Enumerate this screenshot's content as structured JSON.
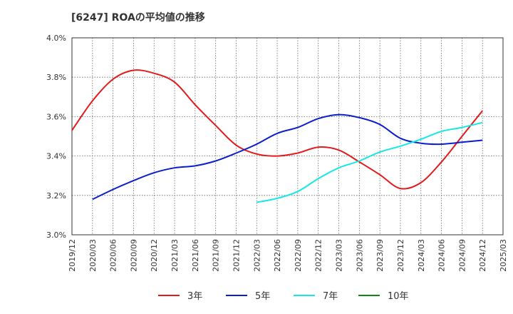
{
  "chart_data": {
    "type": "line",
    "title": "[6247]  ROAの平均値の推移",
    "xlabel": "",
    "ylabel": "",
    "ylim": [
      3.0,
      4.0
    ],
    "y_ticks": [
      "3.0%",
      "3.2%",
      "3.4%",
      "3.6%",
      "3.8%",
      "4.0%"
    ],
    "x_ticks": [
      "2019/12",
      "2020/03",
      "2020/06",
      "2020/09",
      "2020/12",
      "2021/03",
      "2021/06",
      "2021/09",
      "2021/12",
      "2022/03",
      "2022/06",
      "2022/09",
      "2022/12",
      "2023/03",
      "2023/06",
      "2023/09",
      "2023/12",
      "2024/03",
      "2024/06",
      "2024/09",
      "2024/12",
      "2025/03"
    ],
    "grid": true,
    "legend_position": "bottom",
    "series": [
      {
        "name": "3年",
        "color": "#e31a1c",
        "points": [
          {
            "x": "2019/12",
            "y": 3.53
          },
          {
            "x": "2020/03",
            "y": 3.68
          },
          {
            "x": "2020/06",
            "y": 3.79
          },
          {
            "x": "2020/09",
            "y": 3.835
          },
          {
            "x": "2020/12",
            "y": 3.82
          },
          {
            "x": "2021/03",
            "y": 3.775
          },
          {
            "x": "2021/06",
            "y": 3.66
          },
          {
            "x": "2021/09",
            "y": 3.555
          },
          {
            "x": "2021/12",
            "y": 3.455
          },
          {
            "x": "2022/03",
            "y": 3.41
          },
          {
            "x": "2022/06",
            "y": 3.4
          },
          {
            "x": "2022/09",
            "y": 3.415
          },
          {
            "x": "2022/12",
            "y": 3.445
          },
          {
            "x": "2023/03",
            "y": 3.43
          },
          {
            "x": "2023/06",
            "y": 3.37
          },
          {
            "x": "2023/09",
            "y": 3.305
          },
          {
            "x": "2023/12",
            "y": 3.235
          },
          {
            "x": "2024/03",
            "y": 3.265
          },
          {
            "x": "2024/06",
            "y": 3.37
          },
          {
            "x": "2024/09",
            "y": 3.5
          },
          {
            "x": "2024/12",
            "y": 3.63
          }
        ]
      },
      {
        "name": "5年",
        "color": "#0a1fcc",
        "points": [
          {
            "x": "2020/03",
            "y": 3.18
          },
          {
            "x": "2020/06",
            "y": 3.23
          },
          {
            "x": "2020/09",
            "y": 3.275
          },
          {
            "x": "2020/12",
            "y": 3.315
          },
          {
            "x": "2021/03",
            "y": 3.34
          },
          {
            "x": "2021/06",
            "y": 3.35
          },
          {
            "x": "2021/09",
            "y": 3.375
          },
          {
            "x": "2021/12",
            "y": 3.415
          },
          {
            "x": "2022/03",
            "y": 3.46
          },
          {
            "x": "2022/06",
            "y": 3.515
          },
          {
            "x": "2022/09",
            "y": 3.545
          },
          {
            "x": "2022/12",
            "y": 3.59
          },
          {
            "x": "2023/03",
            "y": 3.61
          },
          {
            "x": "2023/06",
            "y": 3.595
          },
          {
            "x": "2023/09",
            "y": 3.56
          },
          {
            "x": "2023/12",
            "y": 3.49
          },
          {
            "x": "2024/03",
            "y": 3.465
          },
          {
            "x": "2024/06",
            "y": 3.46
          },
          {
            "x": "2024/09",
            "y": 3.47
          },
          {
            "x": "2024/12",
            "y": 3.48
          }
        ]
      },
      {
        "name": "7年",
        "color": "#19e6e6",
        "points": [
          {
            "x": "2022/03",
            "y": 3.165
          },
          {
            "x": "2022/06",
            "y": 3.185
          },
          {
            "x": "2022/09",
            "y": 3.22
          },
          {
            "x": "2022/12",
            "y": 3.285
          },
          {
            "x": "2023/03",
            "y": 3.34
          },
          {
            "x": "2023/06",
            "y": 3.375
          },
          {
            "x": "2023/09",
            "y": 3.42
          },
          {
            "x": "2023/12",
            "y": 3.45
          },
          {
            "x": "2024/03",
            "y": 3.485
          },
          {
            "x": "2024/06",
            "y": 3.525
          },
          {
            "x": "2024/09",
            "y": 3.545
          },
          {
            "x": "2024/12",
            "y": 3.57
          }
        ]
      },
      {
        "name": "10年",
        "color": "#118811",
        "points": []
      }
    ]
  }
}
